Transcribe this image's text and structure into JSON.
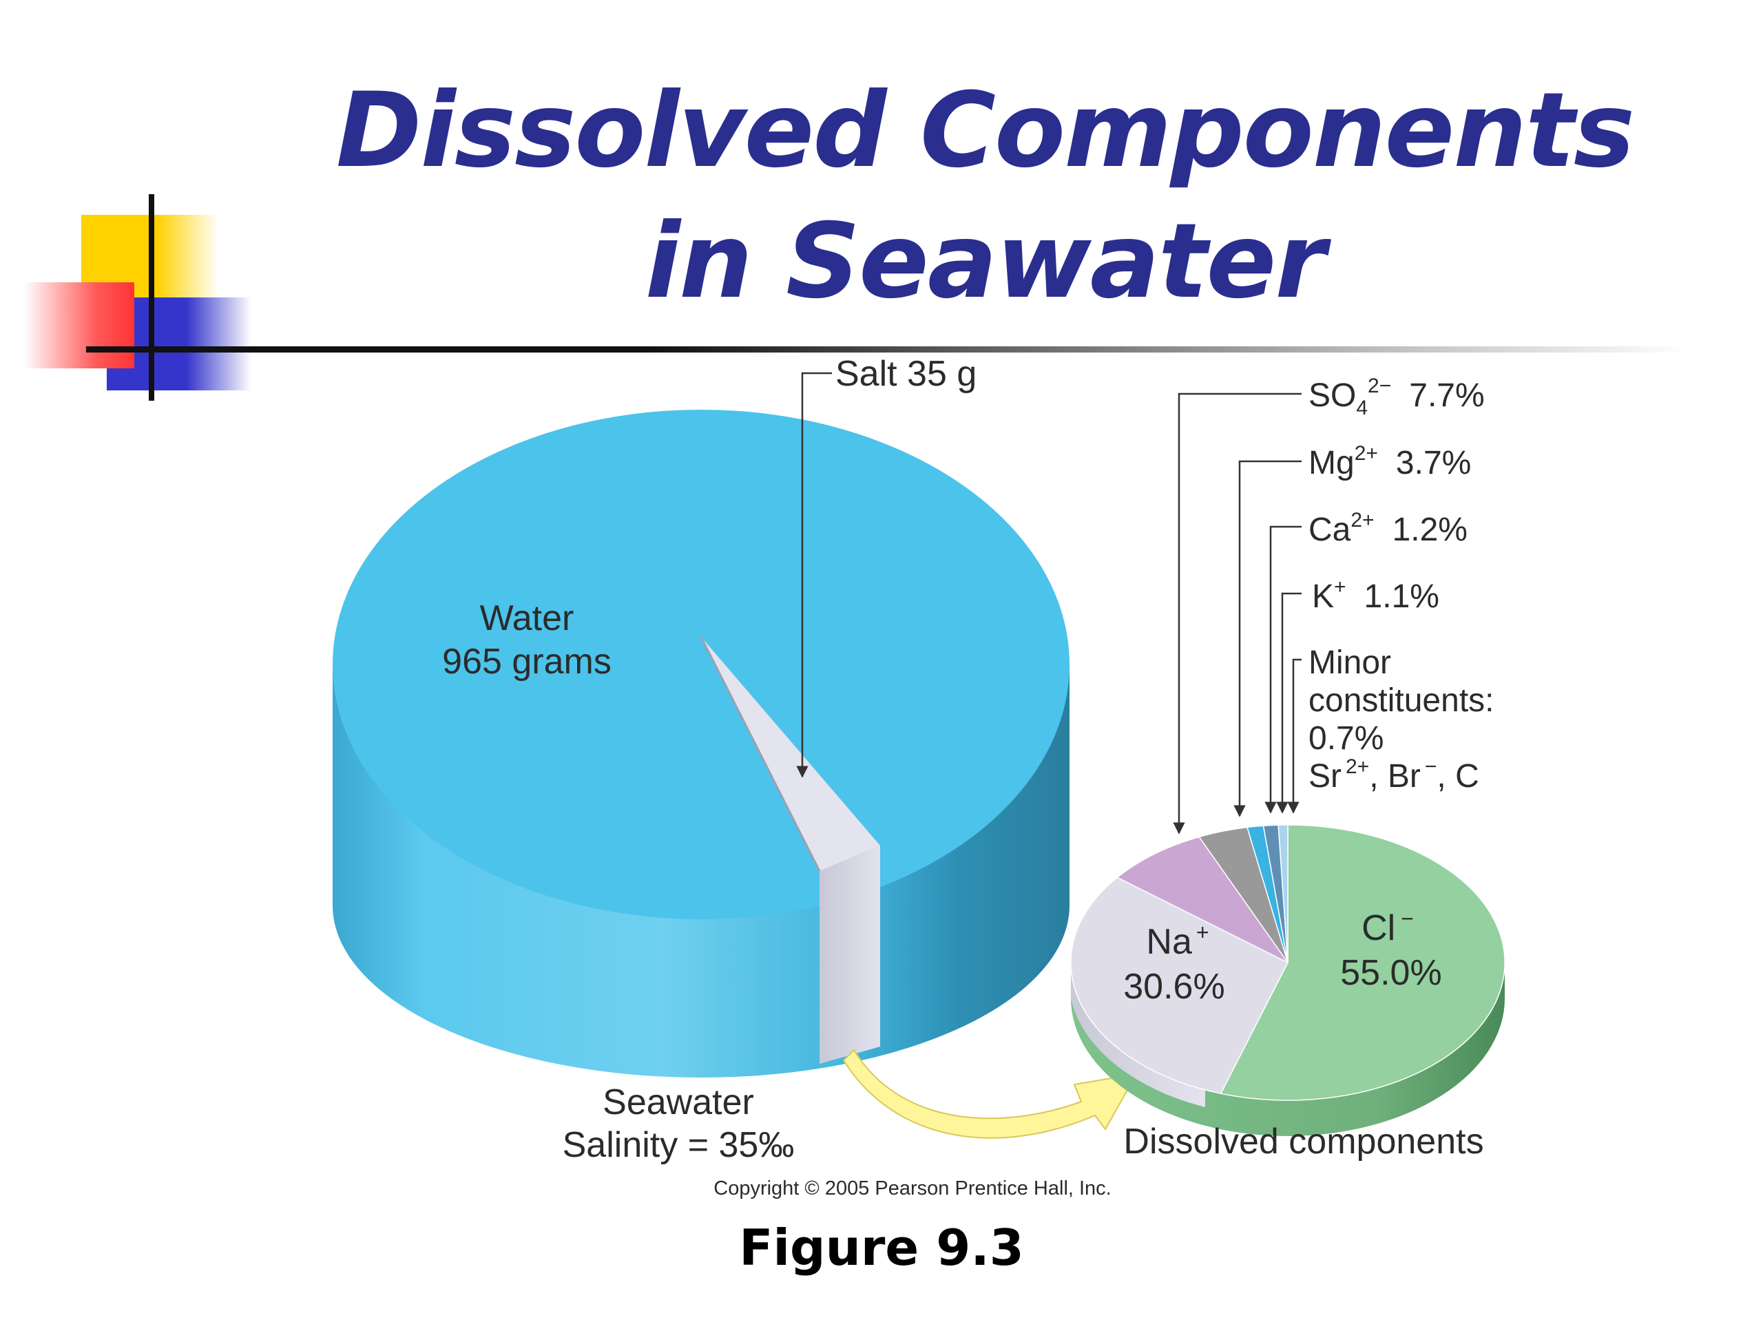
{
  "title": {
    "line1": "Dissolved Components",
    "line2": "in Seawater"
  },
  "caption": "Figure 9.3",
  "colors": {
    "title": "#2a2e8f",
    "water": "#4cc3ea",
    "salt": "#dcdcea",
    "chloride": "#94d0a0",
    "sodium": "#dedde8",
    "sulfate": "#c9a7d2",
    "magnesium": "#999999",
    "calcium": "#38b3e2",
    "potassium": "#5f8fb5",
    "minor": "#a9d4ee",
    "arrow": "#fff59a"
  },
  "chart_data": [
    {
      "type": "pie",
      "slices": [
        {
          "name": "Water",
          "value": 965,
          "unit": "grams"
        },
        {
          "name": "Salt",
          "value": 35,
          "unit": "g"
        }
      ],
      "labels": {
        "water_line1": "Water",
        "water_line2": "965 grams",
        "salt": "Salt 35 g",
        "caption_line1": "Seawater",
        "caption_line2": "Salinity = 35‰"
      }
    },
    {
      "type": "pie",
      "unit": "%",
      "slices": [
        {
          "name": "Cl⁻",
          "value": 55.0
        },
        {
          "name": "Na⁺",
          "value": 30.6
        },
        {
          "name": "SO₄²⁻",
          "value": 7.7
        },
        {
          "name": "Mg²⁺",
          "value": 3.7
        },
        {
          "name": "Ca²⁺",
          "value": 1.2
        },
        {
          "name": "K⁺",
          "value": 1.1
        },
        {
          "name": "Minor constituents",
          "value": 0.7
        }
      ],
      "labels": {
        "cl_ion": "Cl",
        "cl_sup": "−",
        "cl_pct": "55.0%",
        "na_ion": "Na",
        "na_sup": "+",
        "na_pct": "30.6%",
        "so4_ion": "SO",
        "so4_sub": "4",
        "so4_sup": "2−",
        "so4_pct": "7.7%",
        "mg_ion": "Mg",
        "mg_sup": "2+",
        "mg_pct": "3.7%",
        "ca_ion": "Ca",
        "ca_sup": "2+",
        "ca_pct": "1.2%",
        "k_ion": "K",
        "k_sup": "+",
        "k_pct": "1.1%",
        "minor_line1": "Minor",
        "minor_line2": "constituents:",
        "minor_line3": "0.7%",
        "minor_sr": "Sr",
        "minor_sr_sup": "2+",
        "minor_br": ", Br",
        "minor_br_sup": "−",
        "minor_c": ", C",
        "caption": "Dissolved components"
      }
    }
  ],
  "copyright": "Copyright © 2005 Pearson Prentice Hall, Inc."
}
